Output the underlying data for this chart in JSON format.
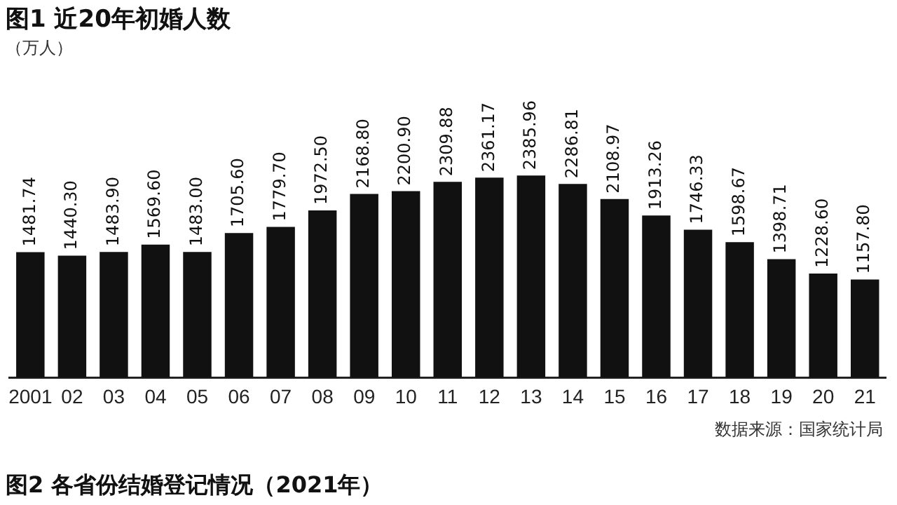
{
  "chart_data": {
    "type": "bar",
    "title": "图1 近20年初婚人数",
    "categories": [
      "2001",
      "02",
      "03",
      "04",
      "05",
      "06",
      "07",
      "08",
      "09",
      "10",
      "11",
      "12",
      "13",
      "14",
      "15",
      "16",
      "17",
      "18",
      "19",
      "20",
      "21"
    ],
    "values": [
      1481.74,
      1440.3,
      1483.9,
      1569.6,
      1483.0,
      1705.6,
      1779.7,
      1972.5,
      2168.8,
      2200.9,
      2309.88,
      2361.17,
      2385.96,
      2286.81,
      2108.97,
      1913.26,
      1746.33,
      1598.67,
      1398.71,
      1228.6,
      1157.8
    ],
    "value_labels": [
      "1481.74",
      "1440.30",
      "1483.90",
      "1569.60",
      "1483.00",
      "1705.60",
      "1779.70",
      "1972.50",
      "2168.80",
      "2200.90",
      "2309.88",
      "2361.17",
      "2385.96",
      "2286.81",
      "2108.97",
      "1913.26",
      "1746.33",
      "1598.67",
      "1398.71",
      "1228.60",
      "1157.80"
    ],
    "color": "#111111",
    "grid": false,
    "legend": false,
    "annotations": [
      "（万人）",
      "数据来源：国家统计局",
      "图2 各省份结婚登记情况（2021年）"
    ]
  }
}
